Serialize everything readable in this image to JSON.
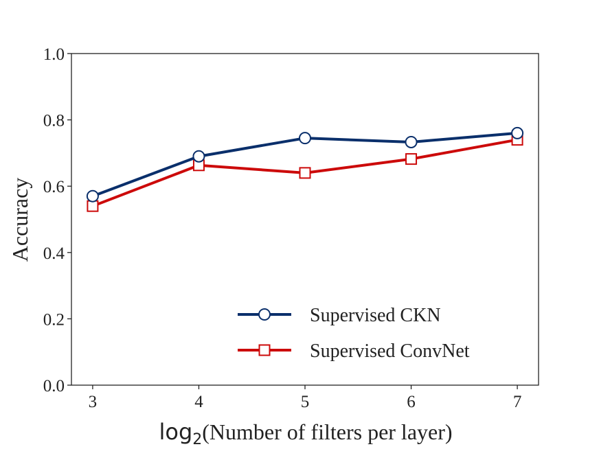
{
  "chart_data": {
    "type": "line",
    "title": "",
    "xlabel_func": "log",
    "xlabel_sub": "2",
    "xlabel_rest": "(Number of filters per layer)",
    "ylabel": "Accuracy",
    "x": [
      3,
      4,
      5,
      6,
      7
    ],
    "xticks": [
      "3",
      "4",
      "5",
      "6",
      "7"
    ],
    "yticks": [
      "0.0",
      "0.2",
      "0.4",
      "0.6",
      "0.8",
      "1.0"
    ],
    "ytick_values": [
      0.0,
      0.2,
      0.4,
      0.6,
      0.8,
      1.0
    ],
    "xlim": [
      2.8,
      7.2
    ],
    "ylim": [
      0.0,
      1.0
    ],
    "grid": false,
    "legend_position": "lower-right",
    "series": [
      {
        "name": "Supervised CKN",
        "values": [
          0.57,
          0.69,
          0.745,
          0.733,
          0.76
        ],
        "color": "#0a2f6b",
        "marker": "circle"
      },
      {
        "name": "Supervised ConvNet",
        "values": [
          0.54,
          0.663,
          0.64,
          0.682,
          0.74
        ],
        "color": "#cc0a0a",
        "marker": "square"
      }
    ]
  }
}
